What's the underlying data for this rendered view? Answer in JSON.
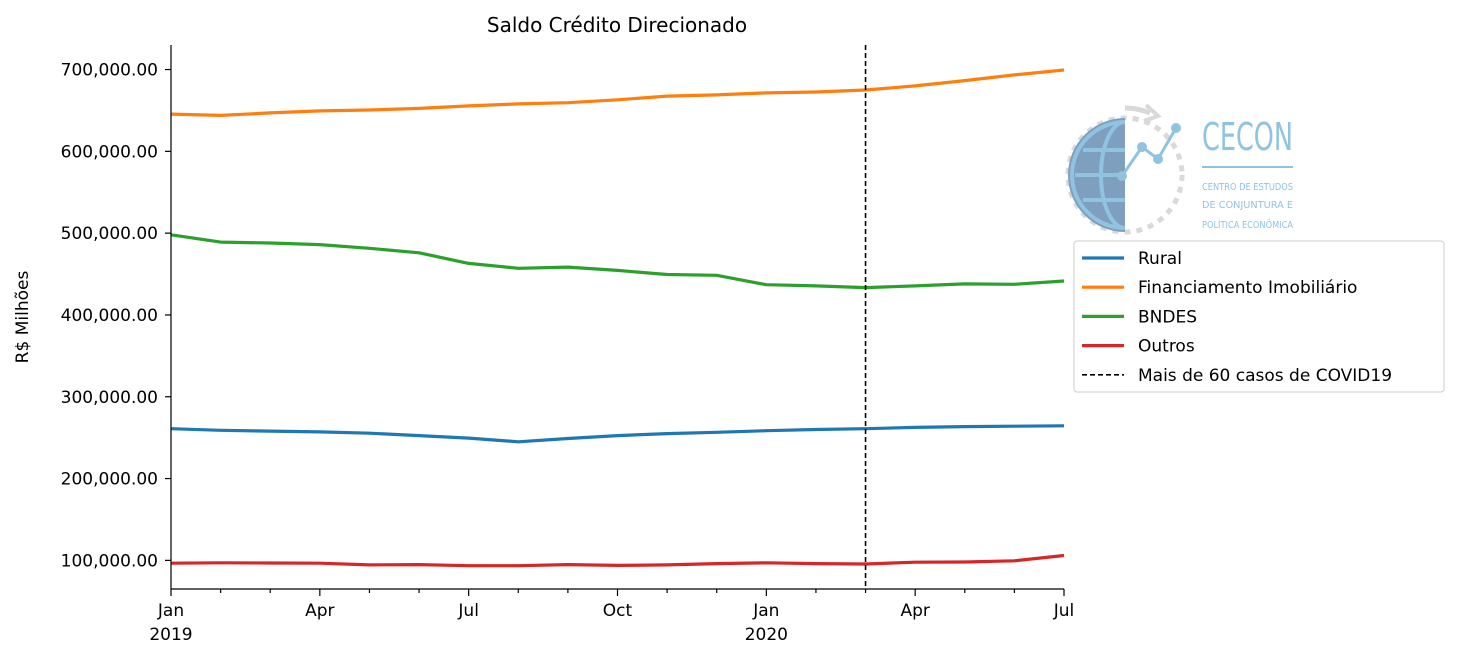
{
  "chart_data": {
    "type": "line",
    "title": "Saldo Crédito Direcionado",
    "xlabel": "",
    "ylabel": "R$ Milhões",
    "x": [
      "2019-01",
      "2019-02",
      "2019-03",
      "2019-04",
      "2019-05",
      "2019-06",
      "2019-07",
      "2019-08",
      "2019-09",
      "2019-10",
      "2019-11",
      "2019-12",
      "2020-01",
      "2020-02",
      "2020-03",
      "2020-04",
      "2020-05",
      "2020-06",
      "2020-07"
    ],
    "x_tick_labels": [
      {
        "x": "2019-01",
        "line1": "Jan",
        "line2": "2019"
      },
      {
        "x": "2019-04",
        "line1": "Apr",
        "line2": ""
      },
      {
        "x": "2019-07",
        "line1": "Jul",
        "line2": ""
      },
      {
        "x": "2019-10",
        "line1": "Oct",
        "line2": ""
      },
      {
        "x": "2020-01",
        "line1": "Jan",
        "line2": "2020"
      },
      {
        "x": "2020-04",
        "line1": "Apr",
        "line2": ""
      },
      {
        "x": "2020-07",
        "line1": "Jul",
        "line2": ""
      }
    ],
    "y_ticks": [
      100000,
      200000,
      300000,
      400000,
      500000,
      600000,
      700000
    ],
    "y_tick_labels": [
      "100,000.00",
      "200,000.00",
      "300,000.00",
      "400,000.00",
      "500,000.00",
      "600,000.00",
      "700,000.00"
    ],
    "ylim": [
      65000,
      730000
    ],
    "xlim": [
      "2019-01",
      "2020-07"
    ],
    "grid": false,
    "legend_position": "right",
    "series": [
      {
        "name": "Rural",
        "color": "#1f77b4",
        "values": [
          261000,
          259000,
          258000,
          257000,
          255500,
          252500,
          249500,
          245000,
          249000,
          252500,
          255000,
          256500,
          258500,
          260000,
          261000,
          262500,
          263500,
          264000,
          264500
        ]
      },
      {
        "name": "Financiamento Imobiliário",
        "color": "#ff7f0e",
        "values": [
          645500,
          644000,
          647000,
          649500,
          650500,
          652500,
          655500,
          658000,
          659500,
          663000,
          667500,
          669000,
          671500,
          672500,
          675000,
          680000,
          686500,
          693500,
          699500
        ]
      },
      {
        "name": "BNDES",
        "color": "#2ca02c",
        "values": [
          498000,
          489000,
          488000,
          486000,
          481500,
          476000,
          463000,
          457000,
          458500,
          454500,
          449500,
          448500,
          437000,
          435500,
          433500,
          435500,
          438000,
          437500,
          441500
        ]
      },
      {
        "name": "Outros",
        "color": "#d62728",
        "values": [
          96500,
          97000,
          96800,
          96500,
          94500,
          94800,
          93500,
          93500,
          94800,
          93800,
          94500,
          96000,
          97000,
          96000,
          95500,
          97800,
          98000,
          99500,
          106000
        ]
      }
    ],
    "annotations": [
      {
        "type": "vline",
        "x": "2020-03",
        "style": "dashed",
        "color": "#000000",
        "label": "Mais de 60 casos de COVID19"
      }
    ]
  },
  "logo": {
    "name": "CECON",
    "lines": [
      "CENTRO DE ESTUDOS",
      "DE CONJUNTURA E",
      "POLÍTICA ECONÔMICA"
    ]
  }
}
